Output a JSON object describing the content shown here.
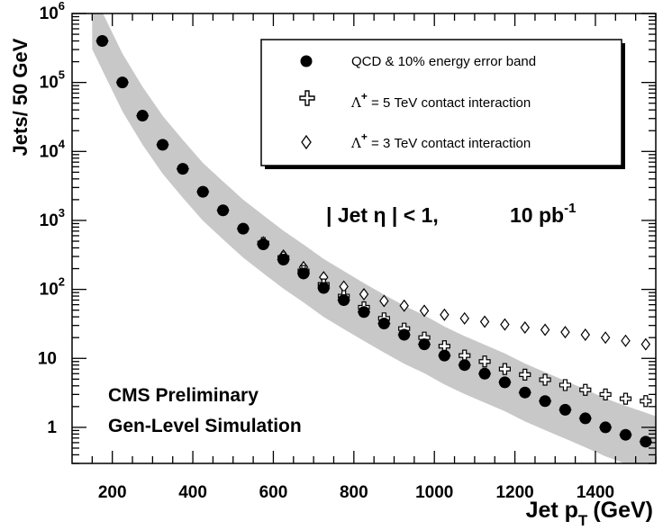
{
  "chart_data": {
    "type": "scatter",
    "title": "",
    "xlabel": "Jet p_T (GeV)",
    "xlabel_main": "Jet p",
    "xlabel_sub": "T",
    "xlabel_unit": "(GeV)",
    "ylabel": "Jets/ 50 GeV",
    "xlim": [
      100,
      1550
    ],
    "ylim": [
      0.3,
      1000000
    ],
    "yscale": "log",
    "x_ticks": [
      200,
      400,
      600,
      800,
      1000,
      1200,
      1400
    ],
    "y_ticks": [
      {
        "value": 1,
        "base": "1",
        "exp": ""
      },
      {
        "value": 10,
        "base": "10",
        "exp": ""
      },
      {
        "value": 100,
        "base": "10",
        "exp": "2"
      },
      {
        "value": 1000,
        "base": "10",
        "exp": "3"
      },
      {
        "value": 10000,
        "base": "10",
        "exp": "4"
      },
      {
        "value": 100000,
        "base": "10",
        "exp": "5"
      },
      {
        "value": 1000000,
        "base": "10",
        "exp": "6"
      }
    ],
    "annotations": {
      "eta_cut": "| Jet η | < 1,",
      "lumi": "10 pb",
      "lumi_exp": "-1",
      "line1": "CMS Preliminary",
      "line2": "Gen-Level Simulation"
    },
    "legend": {
      "position": "top-right",
      "entries": [
        {
          "marker": "circle",
          "text": "QCD  &  10% energy error band"
        },
        {
          "marker": "cross",
          "lambda": "Λ",
          "sup": "+",
          "text": " = 5 TeV contact interaction"
        },
        {
          "marker": "diamond",
          "lambda": "Λ",
          "sup": "+",
          "text": " = 3 TeV contact interaction"
        }
      ]
    },
    "series": [
      {
        "name": "QCD",
        "marker": "circle",
        "band": "10% energy error band",
        "x": [
          175,
          225,
          275,
          325,
          375,
          425,
          475,
          525,
          575,
          625,
          675,
          725,
          775,
          825,
          875,
          925,
          975,
          1025,
          1075,
          1125,
          1175,
          1225,
          1275,
          1325,
          1375,
          1425,
          1475,
          1525
        ],
        "y": [
          400000,
          100000,
          33000,
          12500,
          5600,
          2600,
          1400,
          760,
          450,
          270,
          170,
          105,
          70,
          47,
          32,
          22,
          16,
          11,
          8,
          6,
          4.5,
          3.2,
          2.4,
          1.8,
          1.35,
          1.0,
          0.78,
          0.62
        ]
      },
      {
        "name": "Λ+ = 5 TeV contact interaction",
        "marker": "cross",
        "x": [
          575,
          625,
          675,
          725,
          775,
          825,
          875,
          925,
          975,
          1025,
          1075,
          1125,
          1175,
          1225,
          1275,
          1325,
          1375,
          1425,
          1475,
          1525
        ],
        "y": [
          470,
          290,
          185,
          118,
          80,
          55,
          38,
          27,
          20,
          15,
          11,
          9,
          7,
          5.8,
          4.9,
          4.1,
          3.5,
          3.0,
          2.6,
          2.4
        ]
      },
      {
        "name": "Λ+ = 3 TeV contact interaction",
        "marker": "diamond",
        "x": [
          575,
          625,
          675,
          725,
          775,
          825,
          875,
          925,
          975,
          1025,
          1075,
          1125,
          1175,
          1225,
          1275,
          1325,
          1375,
          1425,
          1475,
          1525
        ],
        "y": [
          480,
          310,
          210,
          150,
          110,
          85,
          68,
          58,
          49,
          43,
          38,
          34,
          31,
          28,
          26,
          24,
          22,
          20,
          18,
          16
        ]
      }
    ]
  }
}
